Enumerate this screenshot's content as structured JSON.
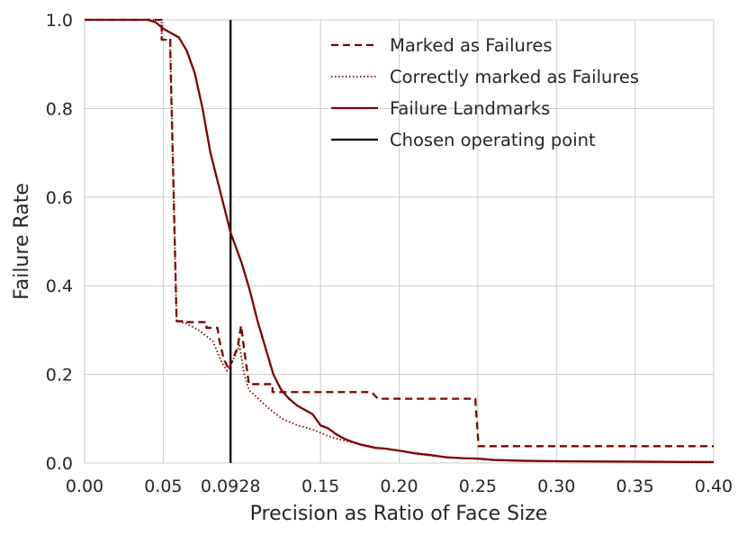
{
  "chart_data": {
    "type": "line",
    "xlabel": "Precision as Ratio of Face Size",
    "ylabel": "Failure Rate",
    "xlim": [
      0,
      0.4
    ],
    "ylim": [
      0,
      1.0
    ],
    "grid": true,
    "legend_position": "top-right",
    "x_ticks": [
      {
        "value": 0.0,
        "label": "0.00"
      },
      {
        "value": 0.05,
        "label": "0.05"
      },
      {
        "value": 0.0928,
        "label": "0.0928"
      },
      {
        "value": 0.15,
        "label": "0.15"
      },
      {
        "value": 0.2,
        "label": "0.20"
      },
      {
        "value": 0.25,
        "label": "0.25"
      },
      {
        "value": 0.3,
        "label": "0.30"
      },
      {
        "value": 0.35,
        "label": "0.35"
      },
      {
        "value": 0.4,
        "label": "0.40"
      }
    ],
    "y_ticks": [
      {
        "value": 0.0,
        "label": "0.0"
      },
      {
        "value": 0.2,
        "label": "0.2"
      },
      {
        "value": 0.4,
        "label": "0.4"
      },
      {
        "value": 0.6,
        "label": "0.6"
      },
      {
        "value": 0.8,
        "label": "0.8"
      },
      {
        "value": 1.0,
        "label": "1.0"
      }
    ],
    "series": [
      {
        "name": "Marked as Failures",
        "color": "#800000",
        "style": "dashed",
        "points": [
          [
            0.0,
            1.0
          ],
          [
            0.049,
            1.0
          ],
          [
            0.049,
            0.955
          ],
          [
            0.0545,
            0.955
          ],
          [
            0.0545,
            0.93
          ],
          [
            0.0585,
            0.32
          ],
          [
            0.0645,
            0.32
          ],
          [
            0.0645,
            0.318
          ],
          [
            0.0775,
            0.318
          ],
          [
            0.0775,
            0.305
          ],
          [
            0.0845,
            0.305
          ],
          [
            0.0855,
            0.28
          ],
          [
            0.0885,
            0.235
          ],
          [
            0.0915,
            0.212
          ],
          [
            0.0945,
            0.235
          ],
          [
            0.0975,
            0.265
          ],
          [
            0.0995,
            0.31
          ],
          [
            0.1015,
            0.255
          ],
          [
            0.1045,
            0.178
          ],
          [
            0.1195,
            0.178
          ],
          [
            0.1195,
            0.16
          ],
          [
            0.1825,
            0.16
          ],
          [
            0.1865,
            0.145
          ],
          [
            0.2485,
            0.145
          ],
          [
            0.2485,
            0.14
          ],
          [
            0.2505,
            0.038
          ],
          [
            0.4,
            0.038
          ]
        ]
      },
      {
        "name": "Correctly marked as Failures",
        "color": "#800000",
        "style": "dotted",
        "points": [
          [
            0.0,
            1.0
          ],
          [
            0.049,
            1.0
          ],
          [
            0.049,
            0.955
          ],
          [
            0.0545,
            0.955
          ],
          [
            0.0545,
            0.93
          ],
          [
            0.0585,
            0.32
          ],
          [
            0.0645,
            0.315
          ],
          [
            0.0725,
            0.3
          ],
          [
            0.0815,
            0.275
          ],
          [
            0.0875,
            0.225
          ],
          [
            0.0905,
            0.208
          ],
          [
            0.0935,
            0.225
          ],
          [
            0.0985,
            0.265
          ],
          [
            0.1015,
            0.2
          ],
          [
            0.1045,
            0.165
          ],
          [
            0.1105,
            0.145
          ],
          [
            0.1165,
            0.125
          ],
          [
            0.1255,
            0.1
          ],
          [
            0.1355,
            0.085
          ],
          [
            0.1455,
            0.075
          ],
          [
            0.1555,
            0.06
          ],
          [
            0.1655,
            0.05
          ],
          [
            0.1855,
            0.035
          ],
          [
            0.2055,
            0.025
          ],
          [
            0.2155,
            0.018
          ],
          [
            0.2355,
            0.012
          ],
          [
            0.2555,
            0.008
          ],
          [
            0.2755,
            0.005
          ],
          [
            0.4,
            0.003
          ]
        ]
      },
      {
        "name": "Failure Landmarks",
        "color": "#800000",
        "style": "solid",
        "points": [
          [
            0.0,
            1.0
          ],
          [
            0.04,
            1.0
          ],
          [
            0.045,
            0.995
          ],
          [
            0.05,
            0.98
          ],
          [
            0.055,
            0.97
          ],
          [
            0.06,
            0.96
          ],
          [
            0.065,
            0.93
          ],
          [
            0.07,
            0.88
          ],
          [
            0.075,
            0.8
          ],
          [
            0.08,
            0.7
          ],
          [
            0.085,
            0.63
          ],
          [
            0.09,
            0.56
          ],
          [
            0.0928,
            0.52
          ],
          [
            0.1,
            0.45
          ],
          [
            0.105,
            0.39
          ],
          [
            0.11,
            0.32
          ],
          [
            0.115,
            0.26
          ],
          [
            0.12,
            0.2
          ],
          [
            0.125,
            0.165
          ],
          [
            0.13,
            0.145
          ],
          [
            0.135,
            0.13
          ],
          [
            0.14,
            0.12
          ],
          [
            0.145,
            0.11
          ],
          [
            0.15,
            0.085
          ],
          [
            0.155,
            0.078
          ],
          [
            0.16,
            0.065
          ],
          [
            0.165,
            0.055
          ],
          [
            0.17,
            0.048
          ],
          [
            0.175,
            0.042
          ],
          [
            0.18,
            0.038
          ],
          [
            0.185,
            0.034
          ],
          [
            0.19,
            0.033
          ],
          [
            0.2,
            0.028
          ],
          [
            0.21,
            0.022
          ],
          [
            0.22,
            0.018
          ],
          [
            0.23,
            0.013
          ],
          [
            0.24,
            0.011
          ],
          [
            0.25,
            0.01
          ],
          [
            0.26,
            0.007
          ],
          [
            0.28,
            0.005
          ],
          [
            0.3,
            0.004
          ],
          [
            0.35,
            0.003
          ],
          [
            0.4,
            0.002
          ]
        ]
      },
      {
        "name": "Chosen operating point",
        "color": "#000000",
        "style": "solid",
        "points": [
          [
            0.0928,
            0.0
          ],
          [
            0.0928,
            1.0
          ]
        ]
      }
    ]
  }
}
